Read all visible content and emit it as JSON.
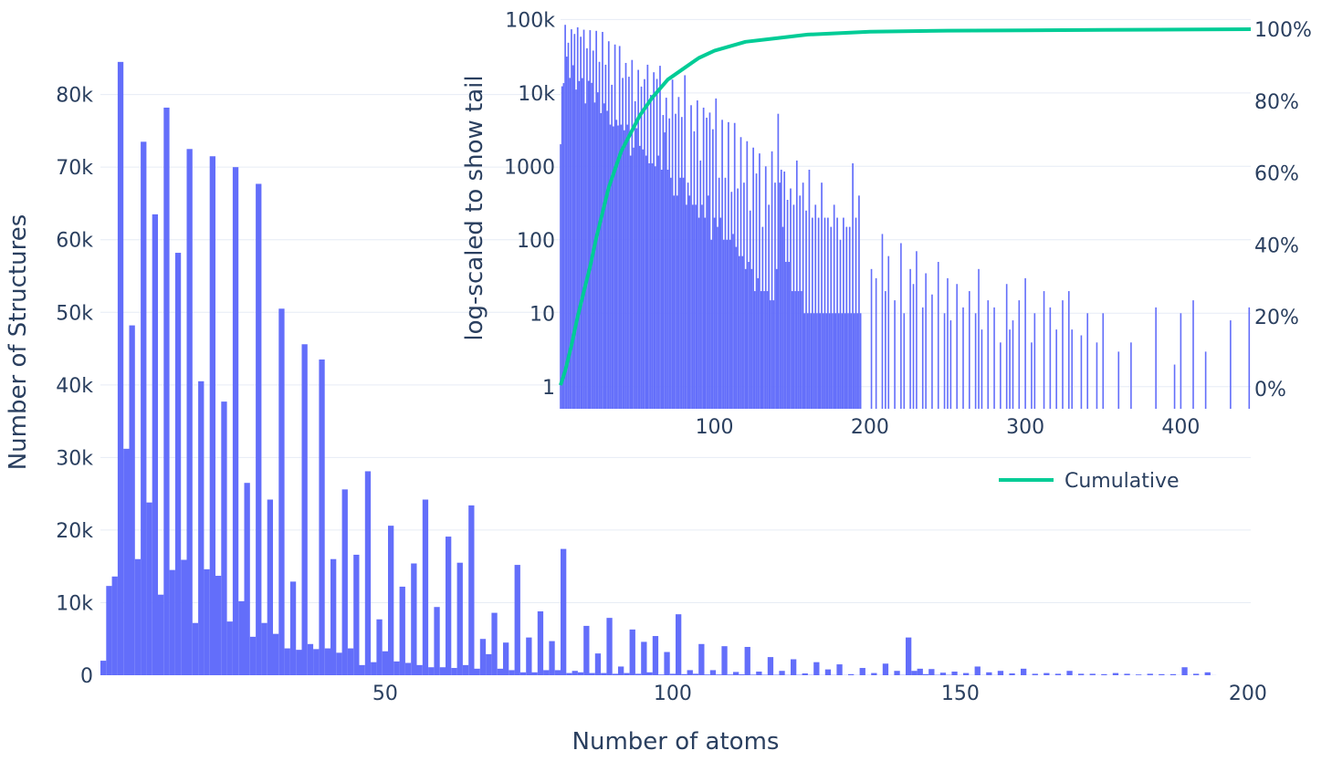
{
  "colors": {
    "bars": "#636efa",
    "cumulative": "#00cc96",
    "grid": "#e6ecf5",
    "text": "#2a3f5f"
  },
  "chart_data": [
    {
      "type": "bar",
      "xlabel": "Number of atoms",
      "ylabel": "Number of Structures",
      "xlim": [
        0.5,
        200.5
      ],
      "ylim": [
        0,
        88000
      ],
      "x_ticks": [
        50,
        100,
        150,
        200
      ],
      "y_ticks": [
        0,
        10000,
        20000,
        30000,
        40000,
        50000,
        60000,
        70000,
        80000
      ],
      "x_tick_labels": [
        "50",
        "100",
        "150",
        "200"
      ],
      "y_tick_labels": [
        "0",
        "10k",
        "20k",
        "30k",
        "40k",
        "50k",
        "60k",
        "70k",
        "80k"
      ],
      "grid": true,
      "values": [
        2000,
        12300,
        13600,
        84500,
        31200,
        48200,
        16000,
        73500,
        23800,
        63500,
        11100,
        78200,
        14500,
        58200,
        15900,
        72500,
        7200,
        40500,
        14600,
        71500,
        13700,
        37700,
        7400,
        70000,
        10200,
        26500,
        5300,
        67700,
        7200,
        24200,
        5700,
        50500,
        3700,
        12900,
        3500,
        45600,
        4300,
        3600,
        43500,
        3700,
        16000,
        3100,
        25600,
        3700,
        16600,
        1400,
        28100,
        1800,
        7700,
        3300,
        20600,
        1900,
        12200,
        1700,
        15400,
        1400,
        24200,
        1100,
        9400,
        1100,
        19100,
        1000,
        15500,
        1400,
        23400,
        900,
        5000,
        2900,
        8600,
        900,
        4500,
        700,
        15200,
        400,
        5200,
        400,
        8800,
        700,
        4700,
        700,
        17400,
        300,
        600,
        400,
        6800,
        300,
        3000,
        300,
        7900,
        200,
        1200,
        300,
        6300,
        200,
        4600,
        400,
        5400,
        100,
        3200,
        200,
        8400,
        150,
        700,
        200,
        4300,
        100,
        700,
        100,
        4000,
        100,
        450,
        120,
        3900,
        80,
        500,
        60,
        2500,
        60,
        600,
        40,
        2200,
        50,
        250,
        40,
        1800,
        20,
        800,
        30,
        1500,
        20,
        150,
        20,
        1000,
        20,
        300,
        15,
        1600,
        15,
        600,
        40,
        5200,
        600,
        900,
        150,
        850,
        50,
        350,
        50,
        500,
        20,
        300,
        20,
        1200,
        20,
        400,
        20,
        600,
        10,
        250,
        10,
        900,
        10,
        200,
        10,
        300,
        10,
        200,
        10,
        600,
        10,
        200,
        10,
        200,
        10,
        150,
        10,
        300,
        10,
        200,
        10,
        100,
        10,
        200,
        10,
        150,
        10,
        150,
        10,
        1100,
        10,
        200,
        10,
        400,
        10
      ]
    },
    {
      "type": "bar",
      "ylabel": "log-scaled to show tail",
      "xlim": [
        1,
        445
      ],
      "ylog": true,
      "ylim": [
        0.5,
        110000
      ],
      "x_ticks": [
        100,
        200,
        300,
        400
      ],
      "x_tick_labels": [
        "100",
        "200",
        "300",
        "400"
      ],
      "y_ticks": [
        1,
        10,
        100,
        1000,
        10000,
        100000
      ],
      "y_tick_labels": [
        "1",
        "10",
        "100",
        "1000",
        "10k",
        "100k"
      ],
      "y2_ticks": [
        0,
        20,
        40,
        60,
        80,
        100
      ],
      "y2_tick_labels": [
        "0%",
        "20%",
        "40%",
        "60%",
        "80%",
        "100%"
      ],
      "grid": true,
      "series": [
        {
          "type": "bar"
        },
        {
          "name": "Cumulative",
          "type": "line",
          "x": [
            1,
            4,
            8,
            12,
            16,
            20,
            24,
            28,
            32,
            36,
            40,
            46,
            52,
            60,
            70,
            80,
            90,
            100,
            120,
            140,
            160,
            200,
            250,
            300,
            350,
            400,
            445
          ],
          "y": [
            1,
            5,
            12,
            20,
            27,
            34,
            42,
            49,
            56,
            61,
            66,
            71,
            76,
            81,
            86,
            89,
            92,
            94,
            96.5,
            97.5,
            98.5,
            99.3,
            99.6,
            99.7,
            99.8,
            99.9,
            100
          ]
        }
      ],
      "legend": "bottom-right"
    }
  ]
}
